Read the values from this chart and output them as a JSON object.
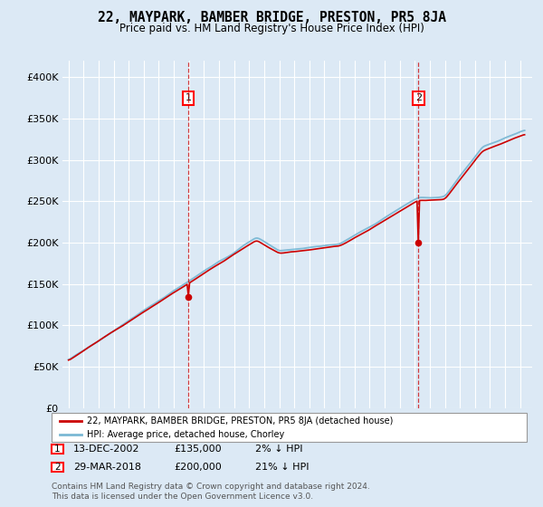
{
  "title": "22, MAYPARK, BAMBER BRIDGE, PRESTON, PR5 8JA",
  "subtitle": "Price paid vs. HM Land Registry's House Price Index (HPI)",
  "background_color": "#dce9f5",
  "plot_bg_color": "#dce9f5",
  "ylabel_ticks": [
    "£0",
    "£50K",
    "£100K",
    "£150K",
    "£200K",
    "£250K",
    "£300K",
    "£350K",
    "£400K"
  ],
  "ytick_values": [
    0,
    50000,
    100000,
    150000,
    200000,
    250000,
    300000,
    350000,
    400000
  ],
  "ylim": [
    0,
    420000
  ],
  "xlim_start": 1994.6,
  "xlim_end": 2025.8,
  "hpi_color": "#7ab8d4",
  "price_color": "#cc0000",
  "sale1_date": 2002.95,
  "sale1_price": 135000,
  "sale2_date": 2018.24,
  "sale2_price": 200000,
  "legend_label1": "22, MAYPARK, BAMBER BRIDGE, PRESTON, PR5 8JA (detached house)",
  "legend_label2": "HPI: Average price, detached house, Chorley",
  "note1_num": "1",
  "note1_date": "13-DEC-2002",
  "note1_price": "£135,000",
  "note1_hpi": "2% ↓ HPI",
  "note2_num": "2",
  "note2_date": "29-MAR-2018",
  "note2_price": "£200,000",
  "note2_hpi": "21% ↓ HPI",
  "footer": "Contains HM Land Registry data © Crown copyright and database right 2024.\nThis data is licensed under the Open Government Licence v3.0."
}
